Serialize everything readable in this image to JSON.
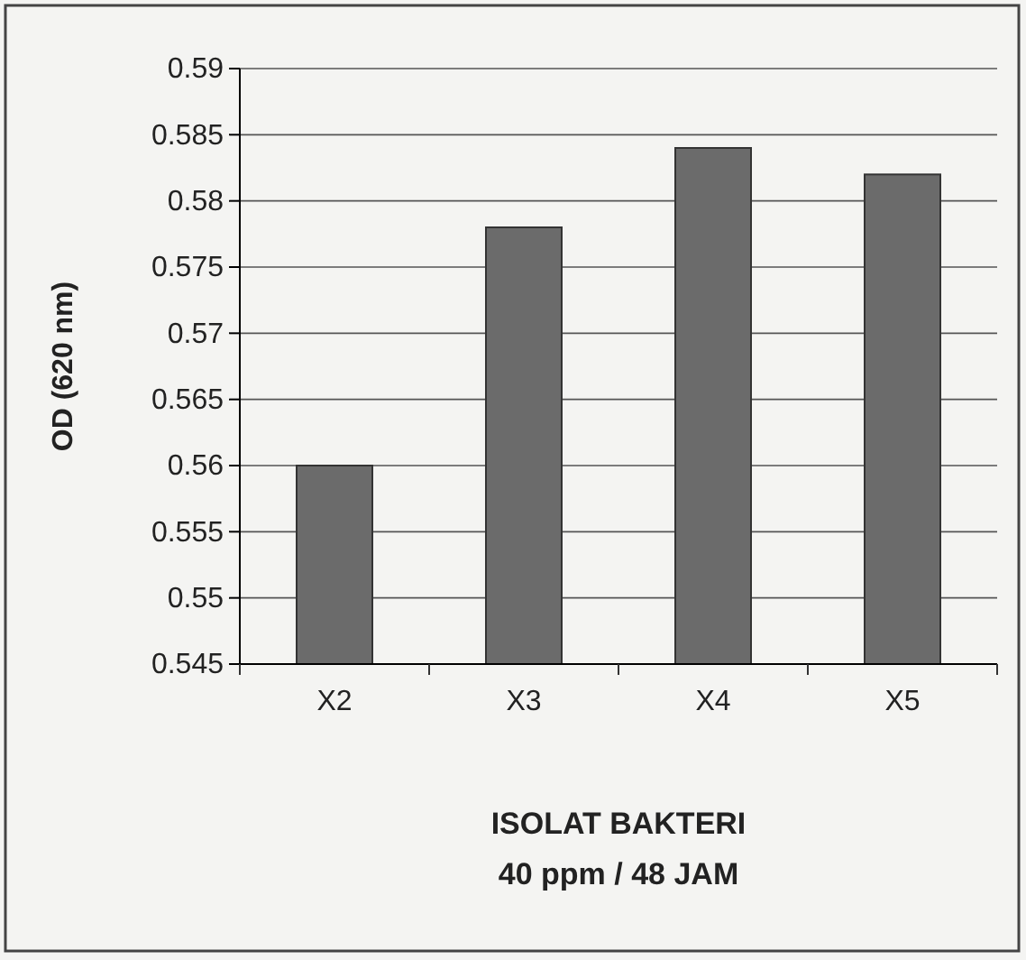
{
  "chart_data": {
    "type": "bar",
    "xlabel": "ISOLAT BAKTERI\n40 ppm / 48 JAM",
    "ylabel": "OD (620 nm)",
    "categories": [
      "X2",
      "X3",
      "X4",
      "X5"
    ],
    "values": [
      0.56,
      0.578,
      0.584,
      0.582
    ],
    "color": "#6b6b6b",
    "ylim": [
      0.545,
      0.59
    ],
    "yticks": [
      0.545,
      0.55,
      0.555,
      0.56,
      0.565,
      0.57,
      0.575,
      0.58,
      0.585,
      0.59
    ],
    "grid": "y"
  }
}
